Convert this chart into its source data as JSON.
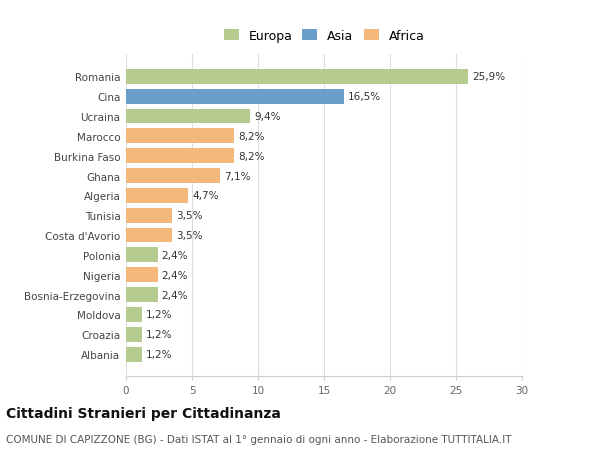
{
  "categories": [
    "Romania",
    "Cina",
    "Ucraina",
    "Marocco",
    "Burkina Faso",
    "Ghana",
    "Algeria",
    "Tunisia",
    "Costa d'Avorio",
    "Polonia",
    "Nigeria",
    "Bosnia-Erzegovina",
    "Moldova",
    "Croazia",
    "Albania"
  ],
  "values": [
    25.9,
    16.5,
    9.4,
    8.2,
    8.2,
    7.1,
    4.7,
    3.5,
    3.5,
    2.4,
    2.4,
    2.4,
    1.2,
    1.2,
    1.2
  ],
  "labels": [
    "25,9%",
    "16,5%",
    "9,4%",
    "8,2%",
    "8,2%",
    "7,1%",
    "4,7%",
    "3,5%",
    "3,5%",
    "2,4%",
    "2,4%",
    "2,4%",
    "1,2%",
    "1,2%",
    "1,2%"
  ],
  "continents": [
    "Europa",
    "Asia",
    "Europa",
    "Africa",
    "Africa",
    "Africa",
    "Africa",
    "Africa",
    "Africa",
    "Europa",
    "Africa",
    "Europa",
    "Europa",
    "Europa",
    "Europa"
  ],
  "colors": {
    "Europa": "#b5cc8e",
    "Asia": "#6b9ec8",
    "Africa": "#f4b87a"
  },
  "xlim": [
    0,
    30
  ],
  "xticks": [
    0,
    5,
    10,
    15,
    20,
    25,
    30
  ],
  "title": "Cittadini Stranieri per Cittadinanza",
  "subtitle": "COMUNE DI CAPIZZONE (BG) - Dati ISTAT al 1° gennaio di ogni anno - Elaborazione TUTTITALIA.IT",
  "background_color": "#ffffff",
  "bar_height": 0.75,
  "grid_color": "#dddddd",
  "label_fontsize": 7.5,
  "tick_fontsize": 7.5,
  "title_fontsize": 10,
  "subtitle_fontsize": 7.5
}
